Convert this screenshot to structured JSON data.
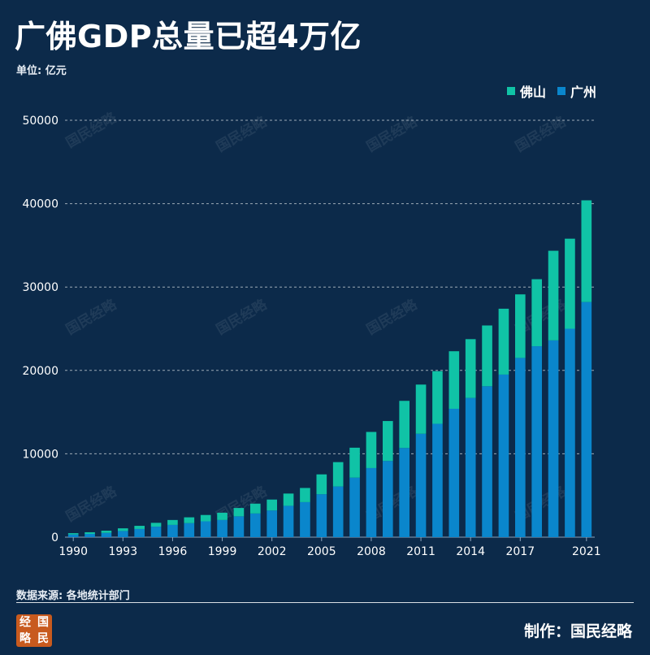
{
  "header": {
    "title": "广佛GDP总量已超4万亿",
    "unit": "单位: 亿元"
  },
  "footer": {
    "source": "数据来源: 各地统计部门",
    "credit": "制作：国民经略",
    "logo_chars": [
      "经",
      "国",
      "略",
      "民"
    ]
  },
  "watermark_text": "国民经略",
  "colors": {
    "background": "#0c2a4a",
    "foshan": "#10c3a6",
    "guangzhou": "#0a86cc"
  },
  "chart_data": {
    "type": "bar",
    "stacked": true,
    "title": "广佛GDP总量已超4万亿",
    "ylabel": "单位: 亿元",
    "ylim": [
      0,
      50000
    ],
    "yticks": [
      0,
      10000,
      20000,
      30000,
      40000,
      50000
    ],
    "xtick_labels": [
      "1990",
      "1993",
      "1996",
      "1999",
      "2002",
      "2005",
      "2008",
      "2011",
      "2014",
      "2017",
      "2021"
    ],
    "grid": true,
    "legend_position": "top-right",
    "categories": [
      "1990",
      "1991",
      "1992",
      "1993",
      "1994",
      "1995",
      "1996",
      "1997",
      "1998",
      "1999",
      "2000",
      "2001",
      "2002",
      "2003",
      "2004",
      "2005",
      "2006",
      "2007",
      "2008",
      "2009",
      "2010",
      "2011",
      "2012",
      "2013",
      "2014",
      "2015",
      "2016",
      "2017",
      "2018",
      "2019",
      "2020",
      "2021"
    ],
    "series": [
      {
        "name": "广州",
        "values": [
          320,
          390,
          510,
          740,
          980,
          1260,
          1470,
          1680,
          1900,
          2060,
          2500,
          2840,
          3200,
          3760,
          4200,
          5150,
          6080,
          7140,
          8290,
          9140,
          10700,
          12400,
          13600,
          15400,
          16700,
          18100,
          19500,
          21500,
          22900,
          23600,
          25000,
          28200
        ]
      },
      {
        "name": "佛山",
        "values": [
          160,
          200,
          270,
          320,
          380,
          460,
          590,
          700,
          760,
          870,
          1000,
          1180,
          1310,
          1470,
          1700,
          2380,
          2920,
          3590,
          4330,
          4790,
          5650,
          5900,
          6310,
          6900,
          7050,
          7290,
          7900,
          7620,
          8040,
          10750,
          10800,
          12200
        ]
      }
    ]
  }
}
